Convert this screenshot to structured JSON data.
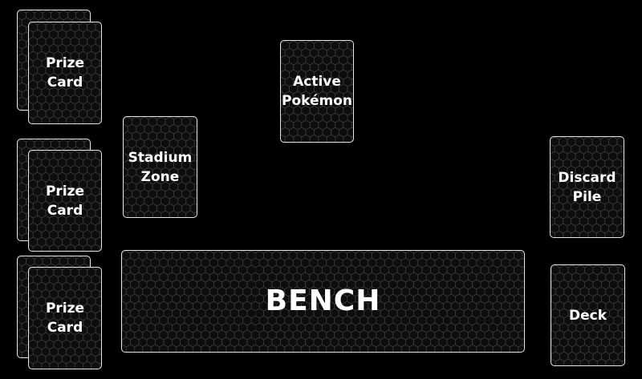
{
  "board": {
    "prize_cards": [
      {
        "label": "Prize\nCard"
      },
      {
        "label": "Prize\nCard"
      },
      {
        "label": "Prize\nCard"
      }
    ],
    "active": {
      "label": "Active\nPokémon"
    },
    "stadium": {
      "label": "Stadium\nZone"
    },
    "discard": {
      "label": "Discard\nPile"
    },
    "bench": {
      "label": "BENCH"
    },
    "deck": {
      "label": "Deck"
    }
  },
  "colors": {
    "background": "#000000",
    "card_border": "#e6e6e6",
    "text": "#ffffff"
  }
}
